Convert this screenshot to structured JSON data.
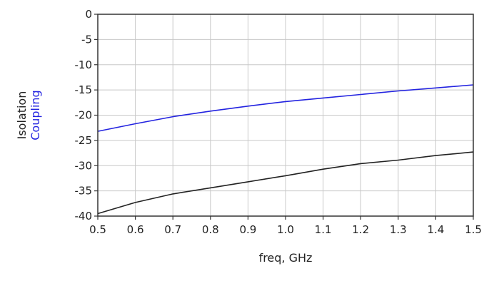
{
  "chart_data": {
    "type": "line",
    "title": "",
    "xlabel": "freq, GHz",
    "ylabels": [
      {
        "text": "Isolation",
        "color": "#222222"
      },
      {
        "text": "Coupling",
        "color": "#2323e0"
      }
    ],
    "xlim": [
      0.5,
      1.5
    ],
    "ylim": [
      -40,
      0
    ],
    "x_ticks": [
      "0.5",
      "0.6",
      "0.7",
      "0.8",
      "0.9",
      "1.0",
      "1.1",
      "1.2",
      "1.3",
      "1.4",
      "1.5"
    ],
    "y_ticks": [
      "0",
      "-5",
      "-10",
      "-15",
      "-20",
      "-25",
      "-30",
      "-35",
      "-40"
    ],
    "grid": true,
    "x": [
      0.5,
      0.6,
      0.7,
      0.8,
      0.9,
      1.0,
      1.1,
      1.2,
      1.3,
      1.4,
      1.5
    ],
    "series": [
      {
        "name": "Coupling",
        "color": "#2323e0",
        "values": [
          -23.2,
          -21.7,
          -20.3,
          -19.2,
          -18.2,
          -17.3,
          -16.6,
          -15.9,
          -15.2,
          -14.6,
          -14.0
        ]
      },
      {
        "name": "Isolation",
        "color": "#222222",
        "values": [
          -39.5,
          -37.3,
          -35.6,
          -34.4,
          -33.2,
          -32.0,
          -30.7,
          -29.6,
          -28.9,
          -28.0,
          -27.3
        ]
      }
    ]
  }
}
